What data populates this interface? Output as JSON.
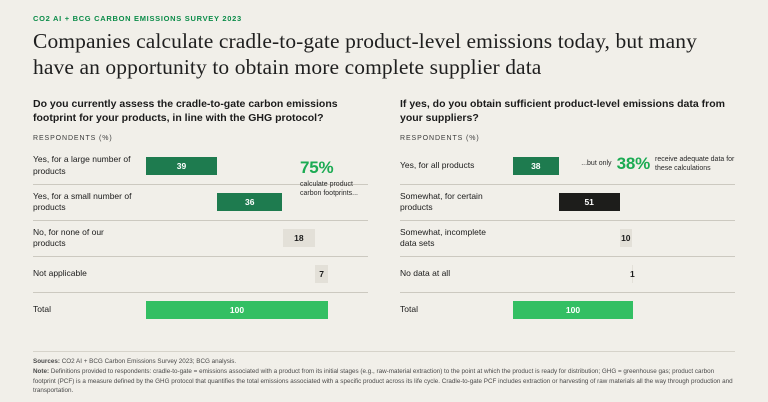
{
  "page": {
    "eyebrow": "CO2 AI + BCG CARBON EMISSIONS SURVEY 2023",
    "title": "Companies calculate cradle-to-gate product-level emissions today, but many have an opportunity to obtain more complete supplier data"
  },
  "colors": {
    "background": "#f1efe9",
    "eyebrow_green": "#0c8c49",
    "dark_green_bar": "#1e7b4f",
    "bright_green_bar": "#33bf63",
    "black_bar": "#1d1d1b",
    "gray_bar": "#e3e0d8",
    "accent_green_text": "#1cab53"
  },
  "chart_data": [
    {
      "type": "bar",
      "layout": "horizontal-waterfall",
      "title": "Do you currently assess the cradle-to-gate carbon emissions footprint for your products, in line with the GHG protocol?",
      "ylabel": "RESPONDENTS (%)",
      "xlim": [
        0,
        100
      ],
      "rows": [
        {
          "label": "Yes, for a large number of products",
          "value": 39,
          "color": "dark_green_bar"
        },
        {
          "label": "Yes, for a small number of products",
          "value": 36,
          "color": "dark_green_bar"
        },
        {
          "label": "No, for none of our products",
          "value": 18,
          "color": "gray_bar"
        },
        {
          "label": "Not applicable",
          "value": 7,
          "color": "gray_bar"
        },
        {
          "label": "Total",
          "value": 100,
          "color": "bright_green_bar",
          "is_total": true
        }
      ],
      "annotation": {
        "pct": "75%",
        "text": "calculate product carbon footprints..."
      }
    },
    {
      "type": "bar",
      "layout": "horizontal-waterfall",
      "title": "If yes, do you obtain sufficient product-level emissions data from your suppliers?",
      "ylabel": "RESPONDENTS (%)",
      "xlim": [
        0,
        100
      ],
      "rows": [
        {
          "label": "Yes, for all products",
          "value": 38,
          "color": "dark_green_bar"
        },
        {
          "label": "Somewhat, for certain products",
          "value": 51,
          "color": "black_bar"
        },
        {
          "label": "Somewhat, incomplete data sets",
          "value": 10,
          "color": "gray_bar"
        },
        {
          "label": "No data at all",
          "value": 1,
          "color": "gray_bar"
        },
        {
          "label": "Total",
          "value": 100,
          "color": "bright_green_bar",
          "is_total": true
        }
      ],
      "annotation": {
        "prefix": "...but only",
        "pct": "38%",
        "text": "receive adequate data for these calculations"
      }
    }
  ],
  "footer": {
    "sources_label": "Sources:",
    "sources": "CO2 AI + BCG Carbon Emissions Survey 2023; BCG analysis.",
    "note_label": "Note:",
    "note": "Definitions provided to respondents: cradle-to-gate = emissions associated with a product from its initial stages (e.g., raw-material extraction) to the point at which the product is ready for distribution; GHG = greenhouse gas; product carbon footprint (PCF) is a measure defined by the GHG protocol that quantifies the total emissions associated with a specific product across its life cycle. Cradle-to-gate PCF includes extraction or harvesting of raw materials all the way through production and transportation."
  }
}
